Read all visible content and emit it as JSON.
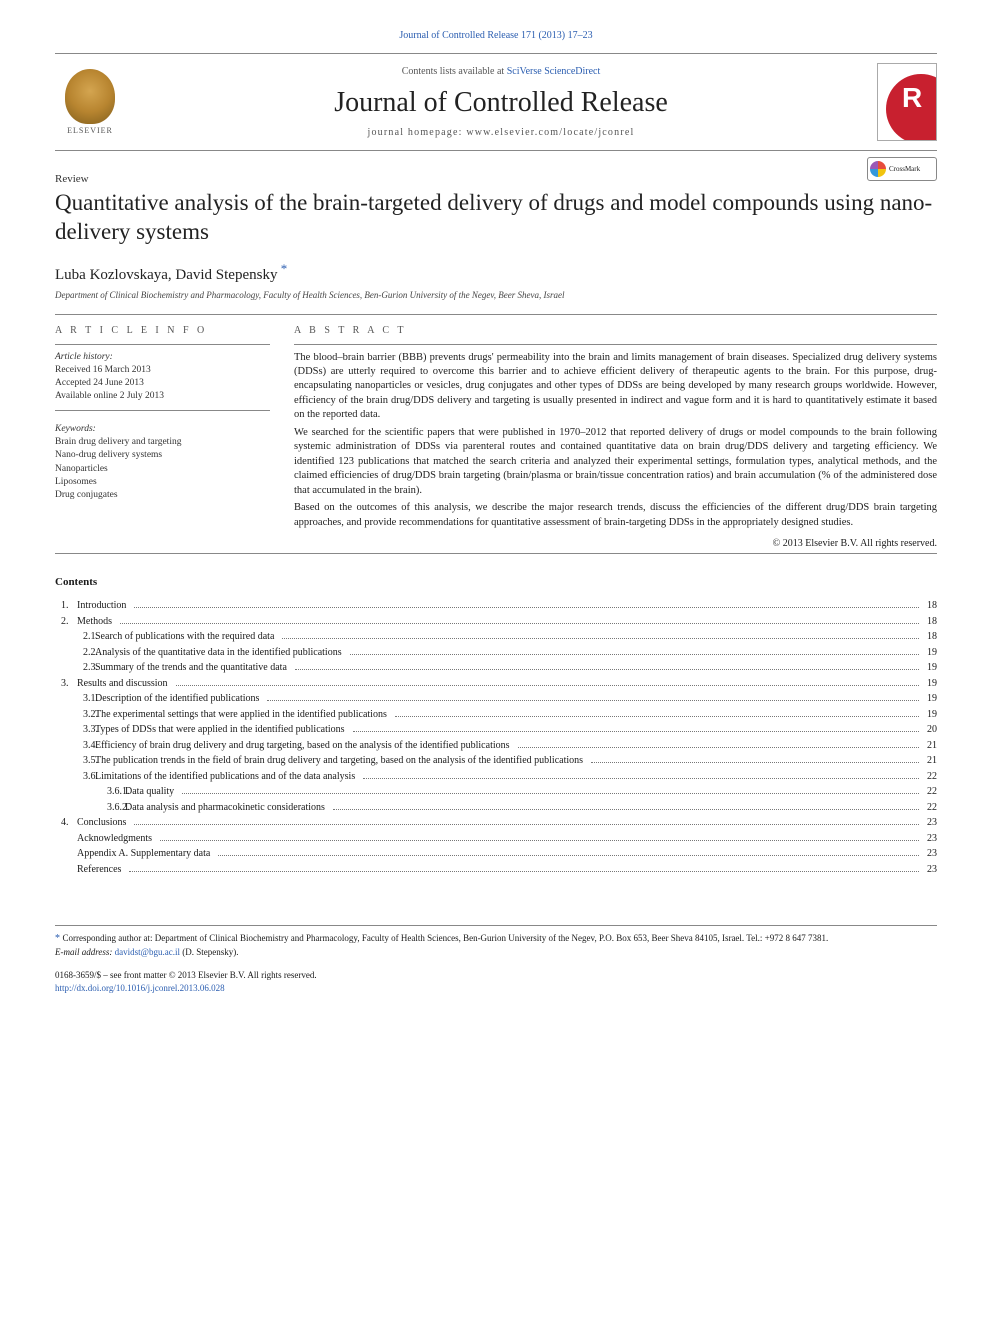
{
  "top_link": "Journal of Controlled Release 171 (2013) 17–23",
  "header": {
    "contents_line_prefix": "Contents lists available at ",
    "contents_line_link": "SciVerse ScienceDirect",
    "journal_title": "Journal of Controlled Release",
    "homepage_label": "journal homepage: ",
    "homepage_url": "www.elsevier.com/locate/jconrel",
    "elsevier": "ELSEVIER"
  },
  "article": {
    "type": "Review",
    "title": "Quantitative analysis of the brain-targeted delivery of drugs and model compounds using nano-delivery systems",
    "crossmark": "CrossMark",
    "authors": "Luba Kozlovskaya, David Stepensky",
    "affiliation": "Department of Clinical Biochemistry and Pharmacology, Faculty of Health Sciences, Ben-Gurion University of the Negev, Beer Sheva, Israel"
  },
  "info": {
    "heading": "A R T I C L E   I N F O",
    "history_label": "Article history:",
    "received": "Received 16 March 2013",
    "accepted": "Accepted 24 June 2013",
    "online": "Available online 2 July 2013",
    "keywords_label": "Keywords:",
    "keywords": [
      "Brain drug delivery and targeting",
      "Nano-drug delivery systems",
      "Nanoparticles",
      "Liposomes",
      "Drug conjugates"
    ]
  },
  "abstract": {
    "heading": "A B S T R A C T",
    "p1": "The blood–brain barrier (BBB) prevents drugs' permeability into the brain and limits management of brain diseases. Specialized drug delivery systems (DDSs) are utterly required to overcome this barrier and to achieve efficient delivery of therapeutic agents to the brain. For this purpose, drug-encapsulating nanoparticles or vesicles, drug conjugates and other types of DDSs are being developed by many research groups worldwide. However, efficiency of the brain drug/DDS delivery and targeting is usually presented in indirect and vague form and it is hard to quantitatively estimate it based on the reported data.",
    "p2": "We searched for the scientific papers that were published in 1970–2012 that reported delivery of drugs or model compounds to the brain following systemic administration of DDSs via parenteral routes and contained quantitative data on brain drug/DDS delivery and targeting efficiency. We identified 123 publications that matched the search criteria and analyzed their experimental settings, formulation types, analytical methods, and the claimed efficiencies of drug/DDS brain targeting (brain/plasma or brain/tissue concentration ratios) and brain accumulation (% of the administered dose that accumulated in the brain).",
    "p3": "Based on the outcomes of this analysis, we describe the major research trends, discuss the efficiencies of the different drug/DDS brain targeting approaches, and provide recommendations for quantitative assessment of brain-targeting DDSs in the appropriately designed studies.",
    "copyright": "© 2013 Elsevier B.V. All rights reserved."
  },
  "contents": {
    "heading": "Contents",
    "items": [
      {
        "level": 1,
        "num": "1.",
        "label": "Introduction",
        "page": "18"
      },
      {
        "level": 1,
        "num": "2.",
        "label": "Methods",
        "page": "18"
      },
      {
        "level": 2,
        "num": "2.1.",
        "label": "Search of publications with the required data",
        "page": "18"
      },
      {
        "level": 2,
        "num": "2.2.",
        "label": "Analysis of the quantitative data in the identified publications",
        "page": "19"
      },
      {
        "level": 2,
        "num": "2.3.",
        "label": "Summary of the trends and the quantitative data",
        "page": "19"
      },
      {
        "level": 1,
        "num": "3.",
        "label": "Results and discussion",
        "page": "19"
      },
      {
        "level": 2,
        "num": "3.1.",
        "label": "Description of the identified publications",
        "page": "19"
      },
      {
        "level": 2,
        "num": "3.2.",
        "label": "The experimental settings that were applied in the identified publications",
        "page": "19"
      },
      {
        "level": 2,
        "num": "3.3.",
        "label": "Types of DDSs that were applied in the identified publications",
        "page": "20"
      },
      {
        "level": 2,
        "num": "3.4.",
        "label": "Efficiency of brain drug delivery and drug targeting, based on the analysis of the identified publications",
        "page": "21"
      },
      {
        "level": 2,
        "num": "3.5.",
        "label": "The publication trends in the field of brain drug delivery and targeting, based on the analysis of the identified publications",
        "page": "21"
      },
      {
        "level": 2,
        "num": "3.6.",
        "label": "Limitations of the identified publications and of the data analysis",
        "page": "22"
      },
      {
        "level": 3,
        "num": "3.6.1.",
        "label": "Data quality",
        "page": "22"
      },
      {
        "level": 3,
        "num": "3.6.2.",
        "label": "Data analysis and pharmacokinetic considerations",
        "page": "22"
      },
      {
        "level": 1,
        "num": "4.",
        "label": "Conclusions",
        "page": "23"
      },
      {
        "level": 1,
        "num": "",
        "label": "Acknowledgments",
        "page": "23"
      },
      {
        "level": 1,
        "num": "",
        "label": "Appendix A.    Supplementary data",
        "page": "23"
      },
      {
        "level": 1,
        "num": "",
        "label": "References",
        "page": "23"
      }
    ]
  },
  "footnotes": {
    "corr": "Corresponding author at: Department of Clinical Biochemistry and Pharmacology, Faculty of Health Sciences, Ben-Gurion University of the Negev, P.O. Box 653, Beer Sheva 84105, Israel. Tel.: +972 8 647 7381.",
    "email_label": "E-mail address: ",
    "email": "davidst@bgu.ac.il",
    "email_suffix": " (D. Stepensky)."
  },
  "bottom": {
    "issn": "0168-3659/$ – see front matter © 2013 Elsevier B.V. All rights reserved.",
    "doi": "http://dx.doi.org/10.1016/j.jconrel.2013.06.028"
  },
  "colors": {
    "link": "#2a5db0",
    "text": "#1a1a1a",
    "rule": "#888888"
  }
}
